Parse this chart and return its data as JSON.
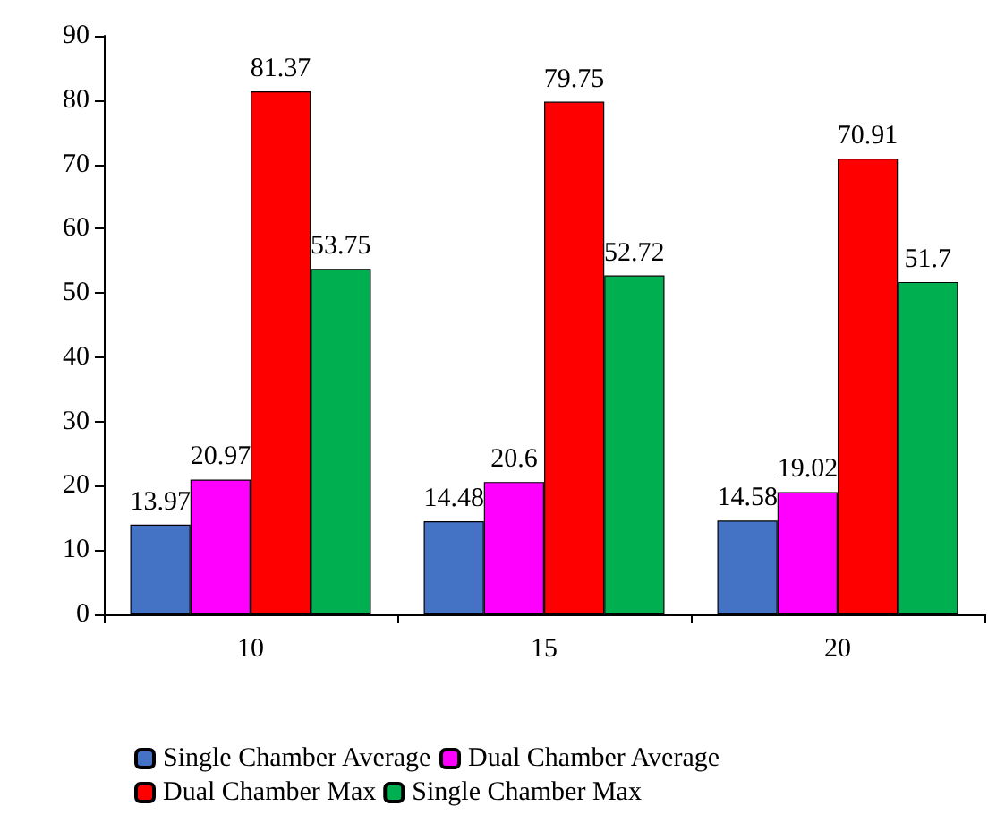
{
  "chart_data": {
    "type": "bar",
    "categories": [
      "10",
      "15",
      "20"
    ],
    "series": [
      {
        "name": "Single Chamber Average",
        "color": "#4472c4",
        "values": [
          13.97,
          14.48,
          14.58
        ]
      },
      {
        "name": "Dual Chamber Average",
        "color": "#ff00ff",
        "values": [
          20.97,
          20.6,
          19.02
        ]
      },
      {
        "name": "Dual Chamber Max",
        "color": "#ff0000",
        "values": [
          81.37,
          79.75,
          70.91
        ]
      },
      {
        "name": "Single Chamber Max",
        "color": "#00b050",
        "values": [
          53.75,
          52.72,
          51.7
        ]
      }
    ],
    "ylim": [
      0,
      90
    ],
    "yticks": [
      0,
      10,
      20,
      30,
      40,
      50,
      60,
      70,
      80,
      90
    ],
    "grid": false,
    "legend": "bottom",
    "data_labels": true
  }
}
